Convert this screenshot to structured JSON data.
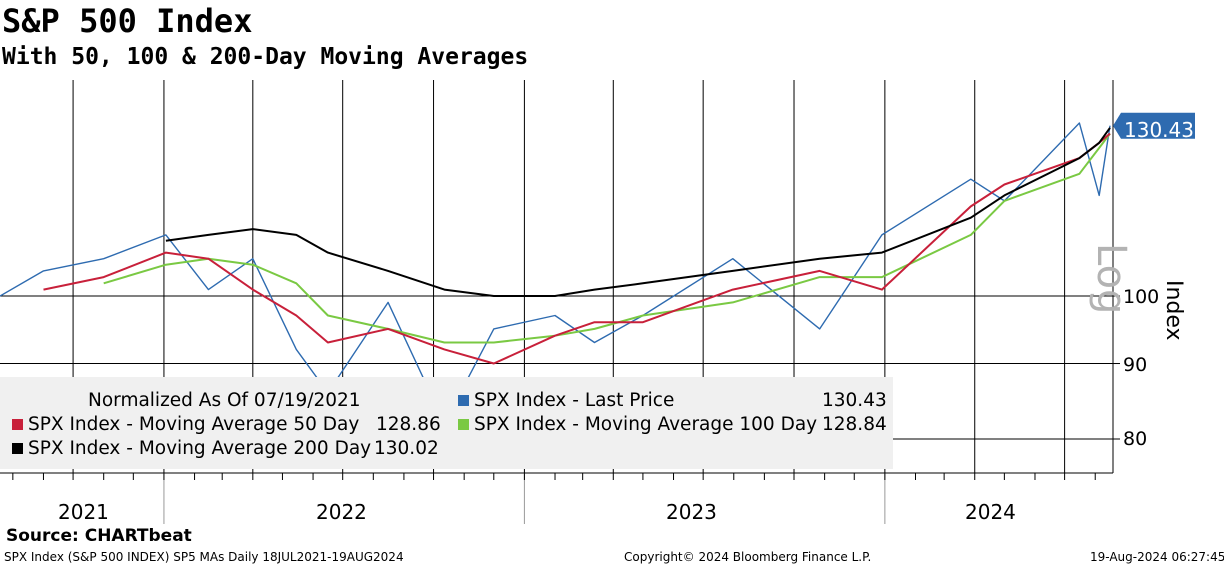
{
  "header": {
    "title": "S&P 500 Index",
    "subtitle": "With 50, 100 & 200-Day Moving Averages"
  },
  "legend": {
    "normalized": "Normalized As Of 07/19/2021",
    "items": [
      {
        "label": "SPX Index - Last Price",
        "value": "130.43",
        "color": "#2e6bb0"
      },
      {
        "label": "SPX Index - Moving Average 50 Day",
        "value": "128.86",
        "color": "#c8203a"
      },
      {
        "label": "SPX Index - Moving Average 100 Day",
        "value": "128.84",
        "color": "#7ac943"
      },
      {
        "label": "SPX Index - Moving Average 200 Day",
        "value": "130.02",
        "color": "#000000"
      }
    ]
  },
  "axis": {
    "y_label": "Index",
    "scale_label": "Log",
    "ticks": [
      "100",
      "90",
      "80"
    ],
    "years": [
      "2021",
      "2022",
      "2023",
      "2024"
    ],
    "last_value": "130.43"
  },
  "source": "Source: CHARTbeat",
  "footer": {
    "left": "SPX Index (S&P 500 INDEX) SP5 MAs  Daily 18JUL2021-19AUG2024",
    "center": "Copyright© 2024 Bloomberg Finance L.P.",
    "right": "19-Aug-2024 06:27:45"
  },
  "chart_data": {
    "type": "line",
    "title": "S&P 500 Index",
    "subtitle": "With 50, 100 & 200-Day Moving Averages",
    "ylabel": "Index",
    "yscale": "log",
    "ylim": [
      76,
      138
    ],
    "x": [
      "2021-07-19",
      "2021-09-01",
      "2021-11-01",
      "2022-01-03",
      "2022-02-15",
      "2022-04-01",
      "2022-05-15",
      "2022-06-16",
      "2022-08-16",
      "2022-10-12",
      "2022-12-01",
      "2023-02-01",
      "2023-03-13",
      "2023-05-01",
      "2023-07-31",
      "2023-10-27",
      "2023-12-29",
      "2024-03-28",
      "2024-05-01",
      "2024-07-16",
      "2024-08-05",
      "2024-08-16"
    ],
    "series": [
      {
        "name": "SPX Index - Last Price",
        "values": [
          100,
          104,
          106,
          110,
          101,
          106,
          92,
          86,
          99,
          82,
          95,
          97,
          93,
          97,
          106,
          95,
          110,
          120,
          116,
          131,
          117,
          130.43
        ]
      },
      {
        "name": "SPX Index - Moving Average 50 Day",
        "values": [
          null,
          101,
          103,
          107,
          106,
          101,
          97,
          93,
          95,
          92,
          90,
          94,
          96,
          96,
          101,
          104,
          101,
          115,
          119,
          124,
          127,
          128.86
        ]
      },
      {
        "name": "SPX Index - Moving Average 100 Day",
        "values": [
          null,
          null,
          102,
          105,
          106,
          105,
          102,
          97,
          95,
          93,
          93,
          94,
          95,
          97,
          99,
          103,
          103,
          110,
          116,
          121,
          126,
          128.84
        ]
      },
      {
        "name": "SPX Index - Moving Average 200 Day",
        "values": [
          null,
          null,
          null,
          109,
          110,
          111,
          110,
          107,
          104,
          101,
          100,
          100,
          101,
          102,
          104,
          106,
          107,
          113,
          117,
          124,
          127,
          130.02
        ]
      }
    ]
  }
}
